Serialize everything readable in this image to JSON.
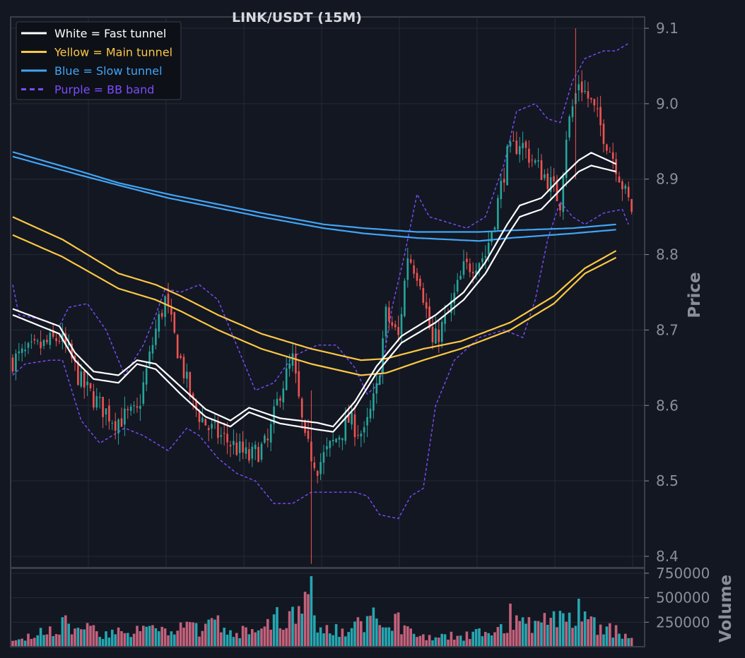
{
  "colors": {
    "background": "#131722",
    "frame": "#3a3e4a",
    "grid": "#262a35",
    "tick": "#8a8f9a",
    "title": "#d6d8de",
    "up": "#26a69a",
    "down": "#ef5350",
    "fast": "#ffffff",
    "main": "#fcc844",
    "slow": "#42a5f5",
    "bb": "#7c4dff",
    "vol_up": "#26a6b0",
    "vol_down": "#c2617b",
    "legend_bg": "#0d1017"
  },
  "chart_data": {
    "type": "candlestick",
    "title": "LINK/USDT (15M)",
    "legend": {
      "placement": "top-left",
      "entries": [
        {
          "label": "White = Fast tunnel",
          "color": "#ffffff",
          "style": "solid"
        },
        {
          "label": "Yellow = Main tunnel",
          "color": "#fcc844",
          "style": "solid"
        },
        {
          "label": "Blue = Slow tunnel",
          "color": "#42a5f5",
          "style": "solid"
        },
        {
          "label": "Purple = BB band",
          "color": "#7c4dff",
          "style": "dashed"
        }
      ]
    },
    "price_axis": {
      "label": "Price",
      "ticks": [
        "8.4",
        "8.5",
        "8.6",
        "8.7",
        "8.8",
        "8.9",
        "9.0",
        "9.1"
      ],
      "ylim": [
        8.385,
        9.115
      ]
    },
    "volume_axis": {
      "label": "Volume",
      "ticks": [
        "250000",
        "500000",
        "750000"
      ],
      "ylim": [
        0,
        800000
      ]
    },
    "grid": true,
    "n_bars": 200,
    "close_anchors": [
      [
        0,
        8.66
      ],
      [
        15,
        8.69
      ],
      [
        18,
        8.67
      ],
      [
        22,
        8.63
      ],
      [
        28,
        8.6
      ],
      [
        33,
        8.58
      ],
      [
        40,
        8.59
      ],
      [
        46,
        8.7
      ],
      [
        49,
        8.74
      ],
      [
        52,
        8.69
      ],
      [
        58,
        8.6
      ],
      [
        63,
        8.57
      ],
      [
        70,
        8.55
      ],
      [
        76,
        8.53
      ],
      [
        82,
        8.55
      ],
      [
        86,
        8.62
      ],
      [
        90,
        8.66
      ],
      [
        94,
        8.55
      ],
      [
        98,
        8.52
      ],
      [
        103,
        8.55
      ],
      [
        108,
        8.58
      ],
      [
        113,
        8.56
      ],
      [
        117,
        8.62
      ],
      [
        120,
        8.72
      ],
      [
        124,
        8.69
      ],
      [
        127,
        8.8
      ],
      [
        131,
        8.77
      ],
      [
        135,
        8.68
      ],
      [
        140,
        8.72
      ],
      [
        145,
        8.78
      ],
      [
        152,
        8.8
      ],
      [
        155,
        8.85
      ],
      [
        159,
        8.93
      ],
      [
        163,
        8.95
      ],
      [
        168,
        8.92
      ],
      [
        172,
        8.9
      ],
      [
        176,
        8.87
      ],
      [
        178,
        8.96
      ],
      [
        182,
        9.03
      ],
      [
        186,
        9.0
      ],
      [
        190,
        8.96
      ],
      [
        194,
        8.92
      ],
      [
        197,
        8.88
      ],
      [
        199,
        8.86
      ]
    ],
    "fast_tunnel": {
      "upper": [
        [
          0,
          8.728
        ],
        [
          15,
          8.705
        ],
        [
          20,
          8.67
        ],
        [
          26,
          8.645
        ],
        [
          34,
          8.64
        ],
        [
          40,
          8.66
        ],
        [
          46,
          8.655
        ],
        [
          54,
          8.625
        ],
        [
          62,
          8.595
        ],
        [
          70,
          8.58
        ],
        [
          76,
          8.597
        ],
        [
          86,
          8.583
        ],
        [
          98,
          8.577
        ],
        [
          103,
          8.572
        ],
        [
          110,
          8.605
        ],
        [
          117,
          8.652
        ],
        [
          125,
          8.692
        ],
        [
          136,
          8.72
        ],
        [
          145,
          8.75
        ],
        [
          152,
          8.79
        ],
        [
          159,
          8.84
        ],
        [
          163,
          8.865
        ],
        [
          170,
          8.875
        ],
        [
          177,
          8.905
        ],
        [
          182,
          8.925
        ],
        [
          186,
          8.935
        ],
        [
          194,
          8.92
        ]
      ],
      "lower": [
        [
          0,
          8.72
        ],
        [
          15,
          8.695
        ],
        [
          20,
          8.66
        ],
        [
          26,
          8.635
        ],
        [
          34,
          8.63
        ],
        [
          40,
          8.655
        ],
        [
          46,
          8.648
        ],
        [
          54,
          8.615
        ],
        [
          62,
          8.585
        ],
        [
          70,
          8.572
        ],
        [
          76,
          8.591
        ],
        [
          86,
          8.576
        ],
        [
          98,
          8.568
        ],
        [
          103,
          8.565
        ],
        [
          110,
          8.597
        ],
        [
          117,
          8.643
        ],
        [
          125,
          8.683
        ],
        [
          136,
          8.71
        ],
        [
          145,
          8.74
        ],
        [
          152,
          8.775
        ],
        [
          159,
          8.825
        ],
        [
          163,
          8.85
        ],
        [
          170,
          8.86
        ],
        [
          177,
          8.89
        ],
        [
          182,
          8.91
        ],
        [
          186,
          8.918
        ],
        [
          194,
          8.91
        ]
      ]
    },
    "main_tunnel": {
      "upper": [
        [
          0,
          8.85
        ],
        [
          16,
          8.82
        ],
        [
          34,
          8.775
        ],
        [
          46,
          8.76
        ],
        [
          54,
          8.745
        ],
        [
          66,
          8.72
        ],
        [
          80,
          8.695
        ],
        [
          96,
          8.675
        ],
        [
          112,
          8.66
        ],
        [
          120,
          8.662
        ],
        [
          132,
          8.675
        ],
        [
          144,
          8.685
        ],
        [
          160,
          8.71
        ],
        [
          174,
          8.745
        ],
        [
          184,
          8.782
        ],
        [
          194,
          8.805
        ]
      ],
      "lower": [
        [
          0,
          8.826
        ],
        [
          16,
          8.797
        ],
        [
          34,
          8.755
        ],
        [
          46,
          8.74
        ],
        [
          54,
          8.725
        ],
        [
          66,
          8.7
        ],
        [
          80,
          8.675
        ],
        [
          96,
          8.655
        ],
        [
          112,
          8.64
        ],
        [
          120,
          8.643
        ],
        [
          132,
          8.66
        ],
        [
          144,
          8.675
        ],
        [
          160,
          8.7
        ],
        [
          174,
          8.735
        ],
        [
          184,
          8.775
        ],
        [
          194,
          8.796
        ]
      ]
    },
    "slow_tunnel": {
      "upper": [
        [
          0,
          8.936
        ],
        [
          22,
          8.91
        ],
        [
          34,
          8.895
        ],
        [
          50,
          8.88
        ],
        [
          80,
          8.855
        ],
        [
          100,
          8.84
        ],
        [
          113,
          8.835
        ],
        [
          130,
          8.83
        ],
        [
          150,
          8.83
        ],
        [
          160,
          8.832
        ],
        [
          180,
          8.835
        ],
        [
          194,
          8.84
        ]
      ],
      "lower": [
        [
          0,
          8.93
        ],
        [
          22,
          8.905
        ],
        [
          34,
          8.892
        ],
        [
          50,
          8.875
        ],
        [
          80,
          8.85
        ],
        [
          100,
          8.835
        ],
        [
          113,
          8.828
        ],
        [
          130,
          8.822
        ],
        [
          150,
          8.818
        ],
        [
          160,
          8.822
        ],
        [
          180,
          8.828
        ],
        [
          194,
          8.833
        ]
      ]
    },
    "bb_band": {
      "upper": [
        [
          0,
          8.76
        ],
        [
          2,
          8.72
        ],
        [
          8,
          8.715
        ],
        [
          15,
          8.705
        ],
        [
          18,
          8.73
        ],
        [
          24,
          8.735
        ],
        [
          30,
          8.7
        ],
        [
          36,
          8.64
        ],
        [
          42,
          8.68
        ],
        [
          46,
          8.72
        ],
        [
          49,
          8.755
        ],
        [
          54,
          8.75
        ],
        [
          60,
          8.76
        ],
        [
          66,
          8.74
        ],
        [
          72,
          8.68
        ],
        [
          78,
          8.62
        ],
        [
          84,
          8.63
        ],
        [
          90,
          8.665
        ],
        [
          98,
          8.68
        ],
        [
          104,
          8.68
        ],
        [
          110,
          8.65
        ],
        [
          114,
          8.615
        ],
        [
          118,
          8.63
        ],
        [
          122,
          8.73
        ],
        [
          126,
          8.8
        ],
        [
          130,
          8.88
        ],
        [
          134,
          8.85
        ],
        [
          138,
          8.845
        ],
        [
          146,
          8.835
        ],
        [
          152,
          8.85
        ],
        [
          158,
          8.92
        ],
        [
          162,
          8.99
        ],
        [
          168,
          9.0
        ],
        [
          172,
          8.98
        ],
        [
          176,
          8.975
        ],
        [
          180,
          9.03
        ],
        [
          184,
          9.06
        ],
        [
          190,
          9.07
        ],
        [
          194,
          9.07
        ],
        [
          198,
          9.08
        ]
      ],
      "lower": [
        [
          0,
          8.64
        ],
        [
          4,
          8.655
        ],
        [
          12,
          8.66
        ],
        [
          16,
          8.66
        ],
        [
          22,
          8.58
        ],
        [
          28,
          8.55
        ],
        [
          36,
          8.57
        ],
        [
          42,
          8.56
        ],
        [
          46,
          8.55
        ],
        [
          50,
          8.54
        ],
        [
          56,
          8.57
        ],
        [
          60,
          8.56
        ],
        [
          66,
          8.53
        ],
        [
          72,
          8.51
        ],
        [
          78,
          8.5
        ],
        [
          84,
          8.47
        ],
        [
          90,
          8.47
        ],
        [
          96,
          8.485
        ],
        [
          104,
          8.485
        ],
        [
          110,
          8.485
        ],
        [
          114,
          8.48
        ],
        [
          118,
          8.455
        ],
        [
          124,
          8.45
        ],
        [
          128,
          8.48
        ],
        [
          132,
          8.49
        ],
        [
          136,
          8.6
        ],
        [
          142,
          8.66
        ],
        [
          150,
          8.69
        ],
        [
          158,
          8.7
        ],
        [
          164,
          8.69
        ],
        [
          168,
          8.74
        ],
        [
          172,
          8.82
        ],
        [
          176,
          8.87
        ],
        [
          180,
          8.85
        ],
        [
          184,
          8.84
        ],
        [
          190,
          8.855
        ],
        [
          196,
          8.86
        ],
        [
          198,
          8.84
        ]
      ]
    },
    "volume_anchors": [
      [
        0,
        60000
      ],
      [
        17,
        320000
      ],
      [
        26,
        220000
      ],
      [
        45,
        220000
      ],
      [
        66,
        320000
      ],
      [
        77,
        180000
      ],
      [
        96,
        720000
      ],
      [
        97,
        320000
      ],
      [
        104,
        230000
      ],
      [
        116,
        400000
      ],
      [
        124,
        350000
      ],
      [
        134,
        120000
      ],
      [
        157,
        230000
      ],
      [
        160,
        440000
      ],
      [
        162,
        320000
      ],
      [
        164,
        300000
      ],
      [
        182,
        490000
      ],
      [
        184,
        360000
      ],
      [
        194,
        220000
      ],
      [
        199,
        90000
      ]
    ]
  }
}
